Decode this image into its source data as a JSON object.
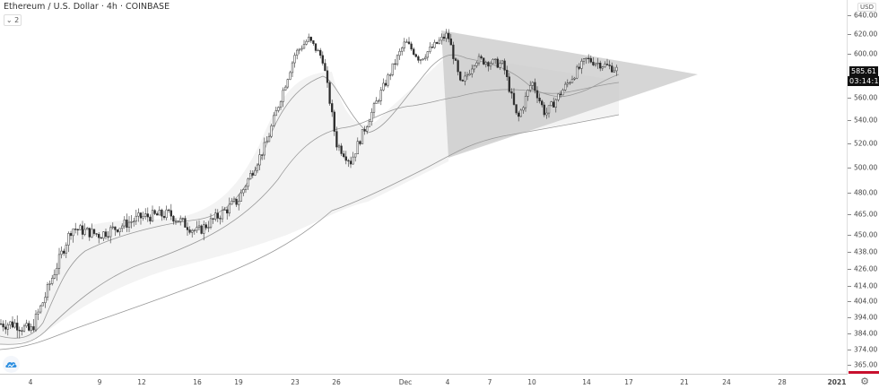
{
  "header": {
    "symbol_title": "Ethereum / U.S. Dollar · 4h · COINBASE",
    "indicator_toggle": "⌄ 2"
  },
  "price_axis": {
    "currency": "USD",
    "last_price": "585.61",
    "countdown": "03:14:17",
    "labels": [
      "640.00",
      "620.00",
      "600.00",
      "560.00",
      "540.00",
      "520.00",
      "500.00",
      "480.00",
      "465.00",
      "450.00",
      "438.00",
      "426.00",
      "414.00",
      "404.00",
      "394.00",
      "384.00",
      "374.00",
      "365.00"
    ]
  },
  "time_axis": {
    "labels": [
      "4",
      "9",
      "12",
      "16",
      "19",
      "23",
      "26",
      "Dec",
      "4",
      "7",
      "10",
      "14",
      "17",
      "21",
      "24",
      "28",
      "2021"
    ]
  },
  "colors": {
    "candle": "#2a2a2a",
    "ma": "#999999",
    "triangle_fill": "#c8c8c8",
    "ma_fill": "#f2f2f2",
    "last_price_bg": "#111111",
    "timeline_marker": "#c8102e",
    "logo_blue": "#2e8fe0"
  },
  "chart_data": {
    "type": "candlestick",
    "title": "Ethereum / U.S. Dollar · 4h · COINBASE",
    "xlabel": "",
    "ylabel": "USD",
    "ylim": [
      365,
      640
    ],
    "x_ticks": [
      "4",
      "9",
      "12",
      "16",
      "19",
      "23",
      "26",
      "Dec",
      "4",
      "7",
      "10",
      "14",
      "17",
      "21",
      "24",
      "28",
      "2021"
    ],
    "y_ticks": [
      640,
      620,
      600,
      560,
      540,
      520,
      500,
      480,
      465,
      450,
      438,
      426,
      414,
      404,
      394,
      384,
      374,
      365
    ],
    "last_price": 585.61,
    "approx_path": [
      {
        "date": "Nov 3",
        "price": 390
      },
      {
        "date": "Nov 4",
        "price": 385
      },
      {
        "date": "Nov 5",
        "price": 405
      },
      {
        "date": "Nov 7",
        "price": 455
      },
      {
        "date": "Nov 9",
        "price": 450
      },
      {
        "date": "Nov 12",
        "price": 463
      },
      {
        "date": "Nov 14",
        "price": 465
      },
      {
        "date": "Nov 16",
        "price": 452
      },
      {
        "date": "Nov 19",
        "price": 475
      },
      {
        "date": "Nov 21",
        "price": 520
      },
      {
        "date": "Nov 23",
        "price": 600
      },
      {
        "date": "Nov 24",
        "price": 615
      },
      {
        "date": "Nov 25",
        "price": 595
      },
      {
        "date": "Nov 26",
        "price": 520
      },
      {
        "date": "Nov 27",
        "price": 505
      },
      {
        "date": "Nov 29",
        "price": 560
      },
      {
        "date": "Dec 1",
        "price": 612
      },
      {
        "date": "Dec 2",
        "price": 595
      },
      {
        "date": "Dec 4",
        "price": 620
      },
      {
        "date": "Dec 5",
        "price": 570
      },
      {
        "date": "Dec 6",
        "price": 595
      },
      {
        "date": "Dec 8",
        "price": 590
      },
      {
        "date": "Dec 9",
        "price": 540
      },
      {
        "date": "Dec 10",
        "price": 575
      },
      {
        "date": "Dec 11",
        "price": 545
      },
      {
        "date": "Dec 13",
        "price": 580
      },
      {
        "date": "Dec 14",
        "price": 595
      },
      {
        "date": "Dec 16",
        "price": 585.61
      }
    ],
    "annotations": [
      {
        "type": "triangle",
        "label": "symmetrical triangle",
        "points": [
          [
            "Dec 4",
            625
          ],
          [
            "Dec 22",
            585
          ],
          [
            "Dec 4",
            505
          ]
        ]
      }
    ],
    "moving_averages": [
      "MA short",
      "MA medium",
      "MA long"
    ],
    "grid": false
  }
}
